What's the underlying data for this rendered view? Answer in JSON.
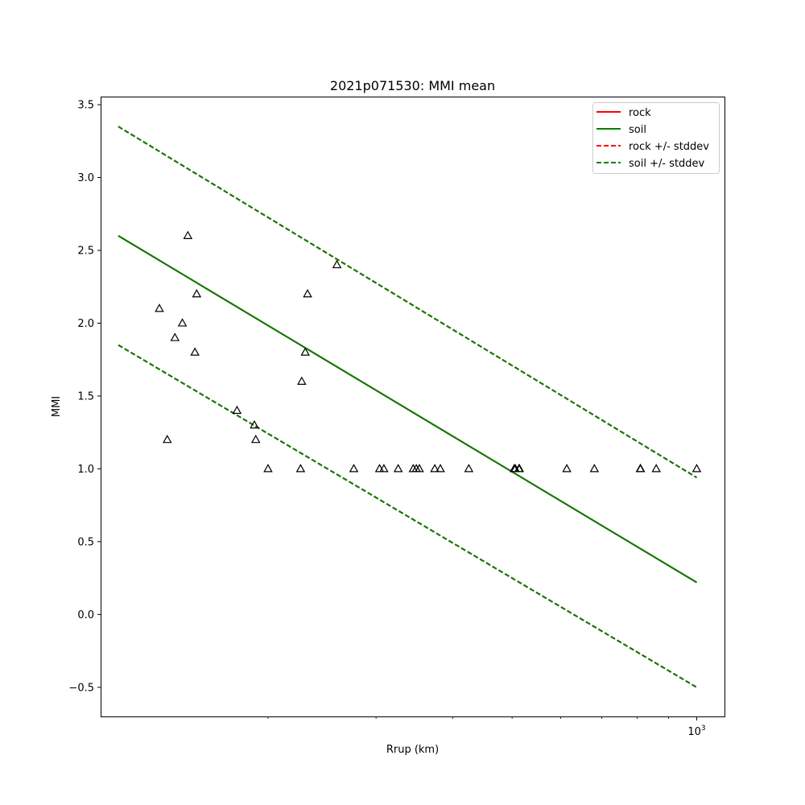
{
  "chart_data": {
    "type": "scatter",
    "title": "2021p071530: MMI mean",
    "xlabel": "Rrup (km)",
    "ylabel": "MMI",
    "xscale": "log",
    "xlim": [
      107,
      1110
    ],
    "ylim": [
      -0.7,
      3.55
    ],
    "xticks": [
      {
        "value": 1000,
        "base": "10",
        "exp": "3"
      }
    ],
    "yticks": [
      -0.5,
      0.0,
      0.5,
      1.0,
      1.5,
      2.0,
      2.5,
      3.0,
      3.5
    ],
    "grid": false,
    "legend_position": "top-right",
    "series": [
      {
        "name": "rock",
        "style": "solid",
        "color": "#ff0000",
        "x": [
          114,
          1000
        ],
        "y": [
          2.6,
          0.22
        ]
      },
      {
        "name": "soil",
        "style": "solid",
        "color": "#007f00",
        "x": [
          114,
          1000
        ],
        "y": [
          2.6,
          0.22
        ]
      },
      {
        "name": "rock +/- stddev",
        "style": "dashed",
        "color": "#ff0000",
        "x": [
          114,
          1000
        ],
        "y": [
          3.35,
          0.94
        ],
        "y2": [
          1.85,
          -0.5
        ]
      },
      {
        "name": "soil +/- stddev",
        "style": "dashed",
        "color": "#007f00",
        "x": [
          114,
          1000
        ],
        "y": [
          3.35,
          0.94
        ],
        "y2": [
          1.85,
          -0.5
        ]
      }
    ],
    "observations": {
      "marker": "triangle",
      "x": [
        133,
        137,
        141,
        145,
        148,
        152,
        153,
        178,
        190,
        191,
        200,
        226,
        227,
        230,
        232,
        259,
        276,
        304,
        309,
        326,
        345,
        349,
        353,
        374,
        382,
        425,
        504,
        506,
        513,
        514,
        614,
        681,
        809,
        810,
        859,
        1000
      ],
      "y": [
        2.1,
        1.2,
        1.9,
        2.0,
        2.6,
        1.8,
        2.2,
        1.4,
        1.3,
        1.2,
        1.0,
        1.0,
        1.6,
        1.8,
        2.2,
        2.4,
        1.0,
        1.0,
        1.0,
        1.0,
        1.0,
        1.0,
        1.0,
        1.0,
        1.0,
        1.0,
        1.0,
        1.0,
        1.0,
        1.0,
        1.0,
        1.0,
        1.0,
        1.0,
        1.0,
        1.0
      ]
    }
  },
  "colors": {
    "rock": "#ff0000",
    "soil": "#007f00",
    "marker_edge": "#000000"
  }
}
